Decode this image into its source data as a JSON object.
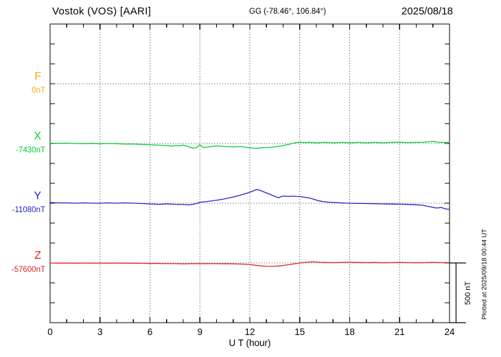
{
  "header": {
    "station_title": "Vostok (VOS)  [AARI]",
    "geographic_coords": "GG (-78.46°, 106.84°)",
    "date": "2025/08/18"
  },
  "side": {
    "scale_bar_label": "500 nT",
    "plotted_at": "Plotted at 2025/09/18 00:44 UT"
  },
  "xaxis": {
    "label": "U T (hour)"
  },
  "chart_data": {
    "type": "line",
    "title": "Vostok (VOS) [AARI] magnetogram, 2025/08/18",
    "xlabel": "U T (hour)",
    "x_range": [
      0,
      24
    ],
    "x_tick_labels": [
      "0",
      "3",
      "6",
      "9",
      "12",
      "15",
      "18",
      "21",
      "24"
    ],
    "x_minor_tick_step_hours": 1,
    "grid": "dotted vertical lines every 3 hours; dotted horizontal line at each component baseline",
    "scale_bar_nT": 500,
    "points_unit": "[hour UT, nT offset from component baseline]",
    "series": [
      {
        "name": "F",
        "color": "#ffaa00",
        "baseline_label": "0nT",
        "points": [],
        "note": "no trace plotted (baseline only)"
      },
      {
        "name": "X",
        "color": "#00cc33",
        "baseline_label": "-7430nT",
        "points": [
          [
            0,
            3
          ],
          [
            0.5,
            1
          ],
          [
            1,
            3
          ],
          [
            1.5,
            0
          ],
          [
            2,
            -2
          ],
          [
            2.5,
            1
          ],
          [
            3,
            -2
          ],
          [
            3.5,
            0
          ],
          [
            4,
            -2
          ],
          [
            4.5,
            -5
          ],
          [
            5,
            -5
          ],
          [
            5.5,
            -8
          ],
          [
            6,
            -11
          ],
          [
            6.5,
            -14
          ],
          [
            7,
            -17
          ],
          [
            7.3,
            -23
          ],
          [
            7.5,
            -17
          ],
          [
            7.8,
            -20
          ],
          [
            8,
            -14
          ],
          [
            8.3,
            -26
          ],
          [
            8.6,
            -40
          ],
          [
            8.8,
            -34
          ],
          [
            9,
            -11
          ],
          [
            9.2,
            -34
          ],
          [
            9.5,
            -29
          ],
          [
            10,
            -20
          ],
          [
            10.5,
            -26
          ],
          [
            11,
            -29
          ],
          [
            11.5,
            -26
          ],
          [
            12,
            -37
          ],
          [
            12.4,
            -40
          ],
          [
            12.7,
            -36
          ],
          [
            13,
            -34
          ],
          [
            13.5,
            -29
          ],
          [
            14,
            -17
          ],
          [
            14.4,
            -6
          ],
          [
            14.7,
            6
          ],
          [
            15,
            11
          ],
          [
            15.3,
            8
          ],
          [
            15.6,
            10
          ],
          [
            16,
            6
          ],
          [
            16.5,
            9
          ],
          [
            17,
            6
          ],
          [
            17.5,
            9
          ],
          [
            18,
            6
          ],
          [
            18.5,
            9
          ],
          [
            19,
            6
          ],
          [
            19.5,
            9
          ],
          [
            20,
            6
          ],
          [
            20.5,
            9
          ],
          [
            21,
            11
          ],
          [
            21.5,
            8
          ],
          [
            22,
            9
          ],
          [
            22.5,
            11
          ],
          [
            23,
            17
          ],
          [
            23.3,
            11
          ],
          [
            23.6,
            9
          ],
          [
            24,
            11
          ]
        ]
      },
      {
        "name": "Y",
        "color": "#2222cc",
        "baseline_label": "-11080nT",
        "points": [
          [
            0,
            6
          ],
          [
            0.5,
            3
          ],
          [
            1,
            3
          ],
          [
            1.5,
            0
          ],
          [
            2,
            3
          ],
          [
            2.5,
            0
          ],
          [
            3,
            0
          ],
          [
            3.5,
            3
          ],
          [
            4,
            0
          ],
          [
            4.5,
            3
          ],
          [
            5,
            0
          ],
          [
            5.5,
            -3
          ],
          [
            6,
            -6
          ],
          [
            6.5,
            -9
          ],
          [
            7,
            -6
          ],
          [
            7.5,
            -9
          ],
          [
            8,
            -11
          ],
          [
            8.4,
            -14
          ],
          [
            8.8,
            -3
          ],
          [
            9,
            8
          ],
          [
            9.3,
            12
          ],
          [
            9.6,
            17
          ],
          [
            10,
            25
          ],
          [
            10.4,
            34
          ],
          [
            10.8,
            46
          ],
          [
            11,
            52
          ],
          [
            11.4,
            66
          ],
          [
            11.7,
            78
          ],
          [
            12,
            92
          ],
          [
            12.2,
            103
          ],
          [
            12.4,
            115
          ],
          [
            12.6,
            109
          ],
          [
            12.8,
            97
          ],
          [
            13,
            86
          ],
          [
            13.2,
            75
          ],
          [
            13.4,
            63
          ],
          [
            13.6,
            52
          ],
          [
            13.75,
            46
          ],
          [
            13.9,
            57
          ],
          [
            14.1,
            60
          ],
          [
            14.4,
            57
          ],
          [
            14.6,
            60
          ],
          [
            14.8,
            57
          ],
          [
            15,
            56
          ],
          [
            15.2,
            52
          ],
          [
            15.5,
            46
          ],
          [
            15.8,
            35
          ],
          [
            16.1,
            21
          ],
          [
            16.4,
            14
          ],
          [
            16.8,
            8
          ],
          [
            17.2,
            5
          ],
          [
            17.6,
            2
          ],
          [
            18,
            0
          ],
          [
            18.5,
            -2
          ],
          [
            19,
            -3
          ],
          [
            19.5,
            -4
          ],
          [
            20,
            -6
          ],
          [
            20.5,
            -7
          ],
          [
            21,
            -8
          ],
          [
            21.5,
            -10
          ],
          [
            22,
            -13
          ],
          [
            22.4,
            -17
          ],
          [
            22.8,
            -29
          ],
          [
            23.2,
            -40
          ],
          [
            23.5,
            -36
          ],
          [
            23.8,
            -48
          ],
          [
            24,
            -52
          ]
        ]
      },
      {
        "name": "Z",
        "color": "#dd2222",
        "baseline_label": "-57600nT",
        "points": [
          [
            0,
            0
          ],
          [
            0.5,
            -2
          ],
          [
            1,
            -1
          ],
          [
            1.5,
            -2
          ],
          [
            2,
            -1
          ],
          [
            2.5,
            -2
          ],
          [
            3,
            -1
          ],
          [
            3.5,
            -2
          ],
          [
            4,
            -1
          ],
          [
            4.5,
            -2
          ],
          [
            5,
            -2
          ],
          [
            5.5,
            -3
          ],
          [
            6,
            -4
          ],
          [
            6.5,
            -4
          ],
          [
            7,
            -5
          ],
          [
            7.5,
            -6
          ],
          [
            8,
            -8
          ],
          [
            8.5,
            -6
          ],
          [
            9,
            -6
          ],
          [
            9.5,
            -6
          ],
          [
            10,
            -6
          ],
          [
            10.5,
            -7
          ],
          [
            11,
            -8
          ],
          [
            11.5,
            -9
          ],
          [
            12,
            -14
          ],
          [
            12.5,
            -22
          ],
          [
            13,
            -28
          ],
          [
            13.4,
            -29
          ],
          [
            13.8,
            -24
          ],
          [
            14.2,
            -17
          ],
          [
            14.6,
            -9
          ],
          [
            15,
            0
          ],
          [
            15.4,
            6
          ],
          [
            15.8,
            9
          ],
          [
            16.2,
            6
          ],
          [
            16.6,
            4
          ],
          [
            17,
            3
          ],
          [
            17.5,
            4
          ],
          [
            18,
            6
          ],
          [
            18.5,
            4
          ],
          [
            19,
            3
          ],
          [
            19.5,
            4
          ],
          [
            20,
            2
          ],
          [
            20.5,
            3
          ],
          [
            21,
            5
          ],
          [
            21.5,
            3
          ],
          [
            22,
            2
          ],
          [
            22.5,
            3
          ],
          [
            23,
            5
          ],
          [
            23.5,
            3
          ],
          [
            24,
            3
          ]
        ]
      }
    ]
  }
}
